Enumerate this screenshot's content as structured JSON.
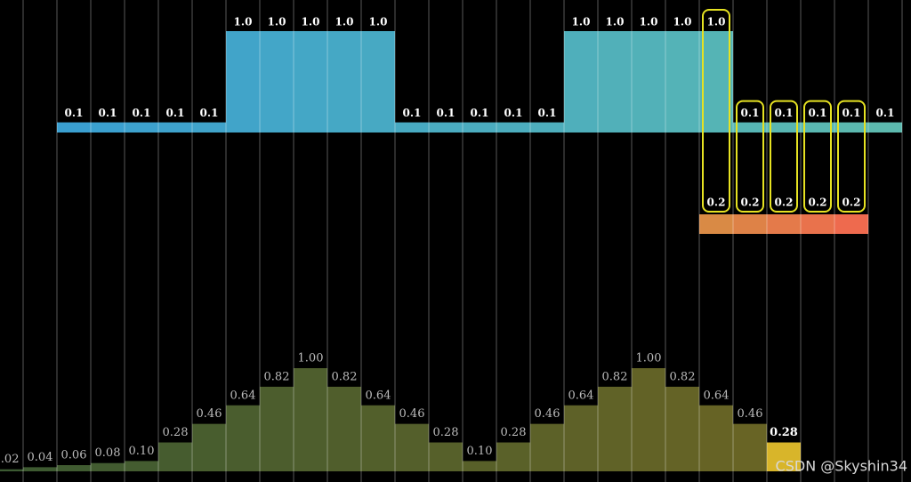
{
  "chart_data": [
    {
      "type": "bar",
      "colors": [
        "#3a9fd0",
        "#5cb9ae"
      ],
      "values": [
        0.1,
        0.1,
        0.1,
        0.1,
        0.1,
        1,
        1,
        1,
        1,
        1,
        0.1,
        0.1,
        0.1,
        0.1,
        0.1,
        1,
        1,
        1,
        1,
        1,
        0.1,
        0.1,
        0.1,
        0.1,
        0.1
      ],
      "value_labels": [
        "0.1",
        "0.1",
        "0.1",
        "0.1",
        "0.1",
        "1.0",
        "1.0",
        "1.0",
        "1.0",
        "1.0",
        "0.1",
        "0.1",
        "0.1",
        "0.1",
        "0.1",
        "1.0",
        "1.0",
        "1.0",
        "1.0",
        "1.0",
        "0.1",
        "0.1",
        "0.1",
        "0.1",
        "0.1"
      ]
    },
    {
      "type": "bar",
      "colors": [
        "#d98a45",
        "#ee6a4e"
      ],
      "values": [
        0.2,
        0.2,
        0.2,
        0.2,
        0.2
      ]
    },
    {
      "type": "bar",
      "colors": [
        "#3c5a32",
        "#6a6424"
      ],
      "highlight_color": "#d8b52a",
      "values": [
        0.02,
        0.04,
        0.06,
        0.08,
        0.1,
        0.28,
        0.46,
        0.64,
        0.82,
        1,
        0.82,
        0.64,
        0.46,
        0.28,
        0.1,
        0.28,
        0.46,
        0.64,
        0.82,
        1,
        0.82,
        0.64,
        0.46,
        0.28
      ],
      "value_labels": [
        "0.02",
        "0.04",
        "0.06",
        "0.08",
        "0.10",
        "0.28",
        "0.46",
        "0.64",
        "0.82",
        "1.00",
        "0.82",
        "0.64",
        "0.46",
        "0.28",
        "0.10",
        "0.28",
        "0.46",
        "0.64",
        "0.82",
        "1.00",
        "0.82",
        "0.64",
        "0.46",
        "0.28"
      ]
    }
  ],
  "watermark": "CSDN @Skyshin34"
}
